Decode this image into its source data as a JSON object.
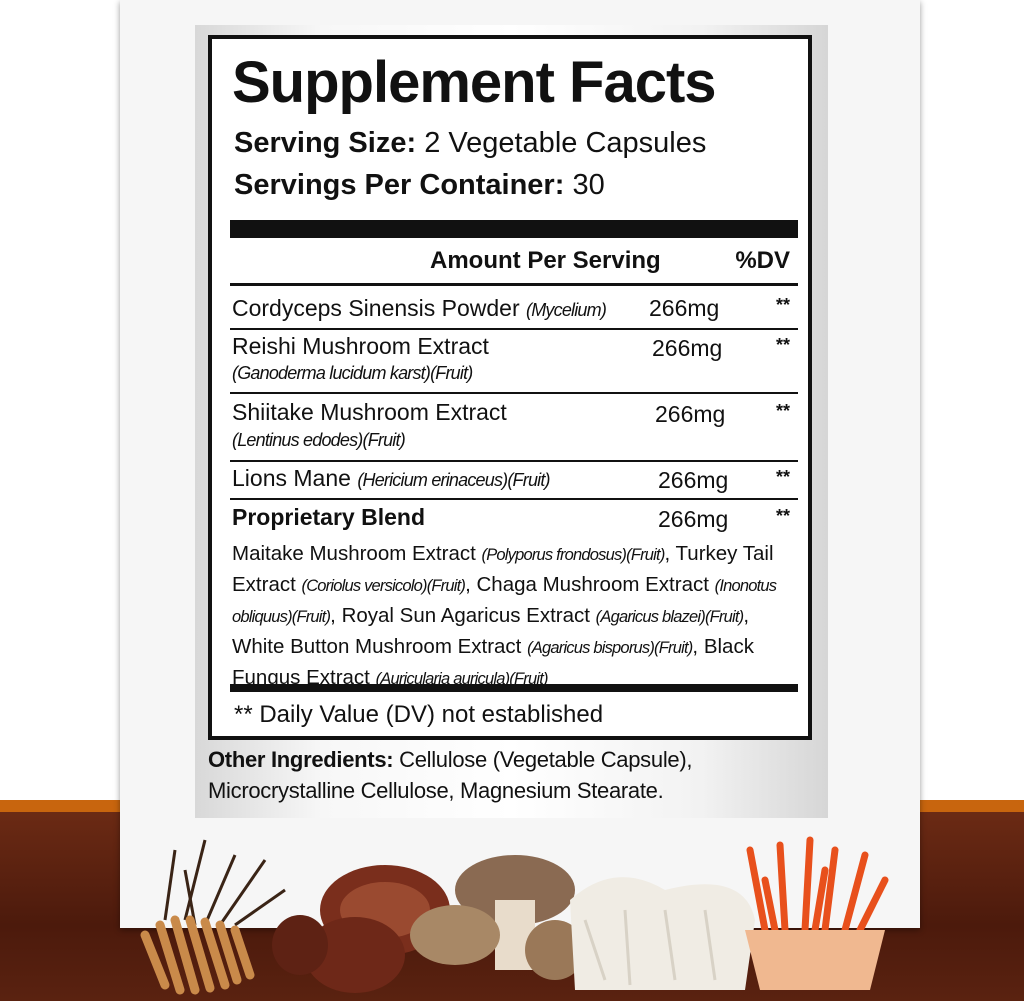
{
  "title": "Supplement Facts",
  "serving_size": {
    "label": "Serving Size:",
    "value": "2 Vegetable Capsules"
  },
  "servings_per_container": {
    "label": "Servings Per Container:",
    "value": "30"
  },
  "header": {
    "amount": "Amount Per Serving",
    "dv": "%DV"
  },
  "rows": [
    {
      "name": "Cordyceps Sinensis Powder",
      "latin": "(Mycelium)",
      "amount": "266mg",
      "dv": "**"
    },
    {
      "name": "Reishi Mushroom Extract",
      "latin": "(Ganoderma lucidum karst)(Fruit)",
      "amount": "266mg",
      "dv": "**"
    },
    {
      "name": "Shiitake Mushroom Extract",
      "latin": "(Lentinus edodes)(Fruit)",
      "amount": "266mg",
      "dv": "**"
    },
    {
      "name": "Lions Mane",
      "latin": "(Hericium erinaceus)(Fruit)",
      "amount": "266mg",
      "dv": "**"
    },
    {
      "name": "Proprietary Blend",
      "latin": "",
      "amount": "266mg",
      "dv": "**"
    }
  ],
  "blend": [
    {
      "name": "Maitake Mushroom Extract",
      "latin": "(Polyporus frondosus)(Fruit)"
    },
    {
      "name": "Turkey Tail Extract",
      "latin": "(Coriolus versicolo)(Fruit)"
    },
    {
      "name": "Chaga Mushroom Extract",
      "latin": "(Inonotus obliquus)(Fruit)"
    },
    {
      "name": "Royal Sun Agaricus Extract",
      "latin": "(Agaricus blazei)(Fruit)"
    },
    {
      "name": "White Button Mushroom Extract",
      "latin": "(Agaricus bisporus)(Fruit)"
    },
    {
      "name": "Black Fungus Extract",
      "latin": "(Auricularia auricula)(Fruit)"
    }
  ],
  "footnote": "** Daily Value (DV) not established",
  "other": {
    "label": "Other Ingredients:",
    "text1": "Cellulose (Vegetable Capsule),",
    "text2": "Microcrystalline Cellulose, Magnesium Stearate."
  },
  "colors": {
    "band": "#c8650e",
    "brown": "#5a2210"
  }
}
